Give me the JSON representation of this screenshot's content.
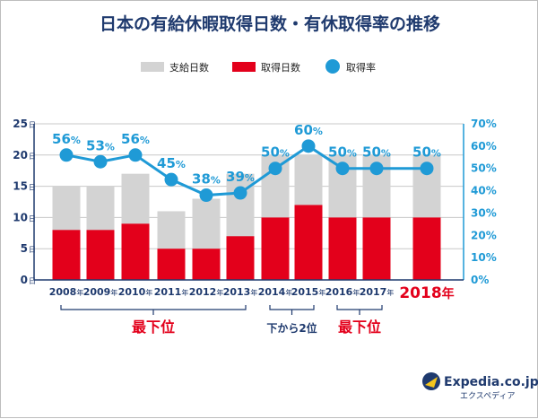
{
  "page": {
    "title": "日本の有給休暇取得日数・有休取得率の推移"
  },
  "legend": {
    "granted_label": "支給日数",
    "taken_label": "取得日数",
    "rate_label": "取得率"
  },
  "y_left_ticks": [
    {
      "value": 0,
      "label": "0"
    },
    {
      "value": 5,
      "label": "5"
    },
    {
      "value": 10,
      "label": "10"
    },
    {
      "value": 15,
      "label": "15"
    },
    {
      "value": 20,
      "label": "20"
    },
    {
      "value": 25,
      "label": "25"
    }
  ],
  "y_left_unit": "日",
  "y_right_ticks": [
    "0%",
    "10%",
    "20%",
    "30%",
    "40%",
    "50%",
    "60%",
    "70%"
  ],
  "x_unit": "年",
  "groups": [
    {
      "label": "最下位",
      "style": "red",
      "from": 0,
      "to": 5
    },
    {
      "label": "下から2位",
      "style": "navy",
      "from": 6,
      "to": 7
    },
    {
      "label": "最下位",
      "style": "red",
      "from": 8,
      "to": 9
    }
  ],
  "brand": {
    "name": "Expedia.co.jp",
    "sub": "エクスペディア"
  },
  "chart_data": {
    "type": "bar",
    "categories": [
      "2008",
      "2009",
      "2010",
      "2011",
      "2012",
      "2013",
      "2014",
      "2015",
      "2016",
      "2017",
      "2018"
    ],
    "highlight_category": "2018",
    "series": [
      {
        "name": "支給日数",
        "kind": "bar",
        "values": [
          15,
          15,
          17,
          11,
          13,
          17,
          20,
          20,
          20,
          20,
          20
        ],
        "color": "#d3d3d3"
      },
      {
        "name": "取得日数",
        "kind": "bar",
        "values": [
          8,
          8,
          9,
          5,
          5,
          7,
          10,
          12,
          10,
          10,
          10
        ],
        "color": "#e3001b"
      },
      {
        "name": "取得率",
        "kind": "line",
        "axis": "right",
        "values": [
          56,
          53,
          56,
          45,
          38,
          39,
          50,
          60,
          50,
          50,
          50
        ],
        "color": "#1f9ad6"
      }
    ],
    "ylim_left": [
      0,
      25
    ],
    "ylim_right": [
      0,
      70
    ],
    "legend_position": "top"
  }
}
